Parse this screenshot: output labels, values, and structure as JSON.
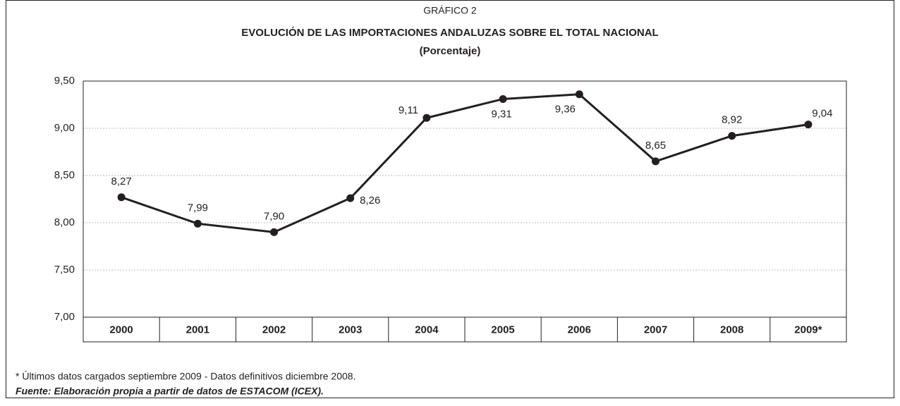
{
  "chart_data": {
    "type": "line",
    "chart_number": "GRÁFICO 2",
    "title": "EVOLUCIÓN DE LAS IMPORTACIONES ANDALUZAS SOBRE EL TOTAL NACIONAL",
    "subtitle": "(Porcentaje)",
    "categories": [
      "2000",
      "2001",
      "2002",
      "2003",
      "2004",
      "2005",
      "2006",
      "2007",
      "2008",
      "2009*"
    ],
    "series": [
      {
        "name": "Importaciones",
        "color": "#231f20",
        "values": [
          8.27,
          7.99,
          7.9,
          8.26,
          9.11,
          9.31,
          9.36,
          8.65,
          8.92,
          9.04
        ],
        "value_labels": [
          "8,27",
          "7,99",
          "7,90",
          "8,26",
          "9,11",
          "9,31",
          "9,36",
          "8,65",
          "8,92",
          "9,04"
        ]
      }
    ],
    "ylim": [
      7,
      9.5
    ],
    "yticks": [
      {
        "value": 7,
        "label": "7,00"
      },
      {
        "value": 7.5,
        "label": "7,50"
      },
      {
        "value": 8,
        "label": "8,00"
      },
      {
        "value": 8.5,
        "label": "8,50"
      },
      {
        "value": 9,
        "label": "9,00"
      },
      {
        "value": 9.5,
        "label": "9,50"
      }
    ],
    "grid": true,
    "note": "* Últimos datos cargados septiembre 2009 - Datos definitivos diciembre 2008.",
    "source": "Fuente: Elaboración propia a partir de datos de ESTACOM (ICEX)."
  }
}
